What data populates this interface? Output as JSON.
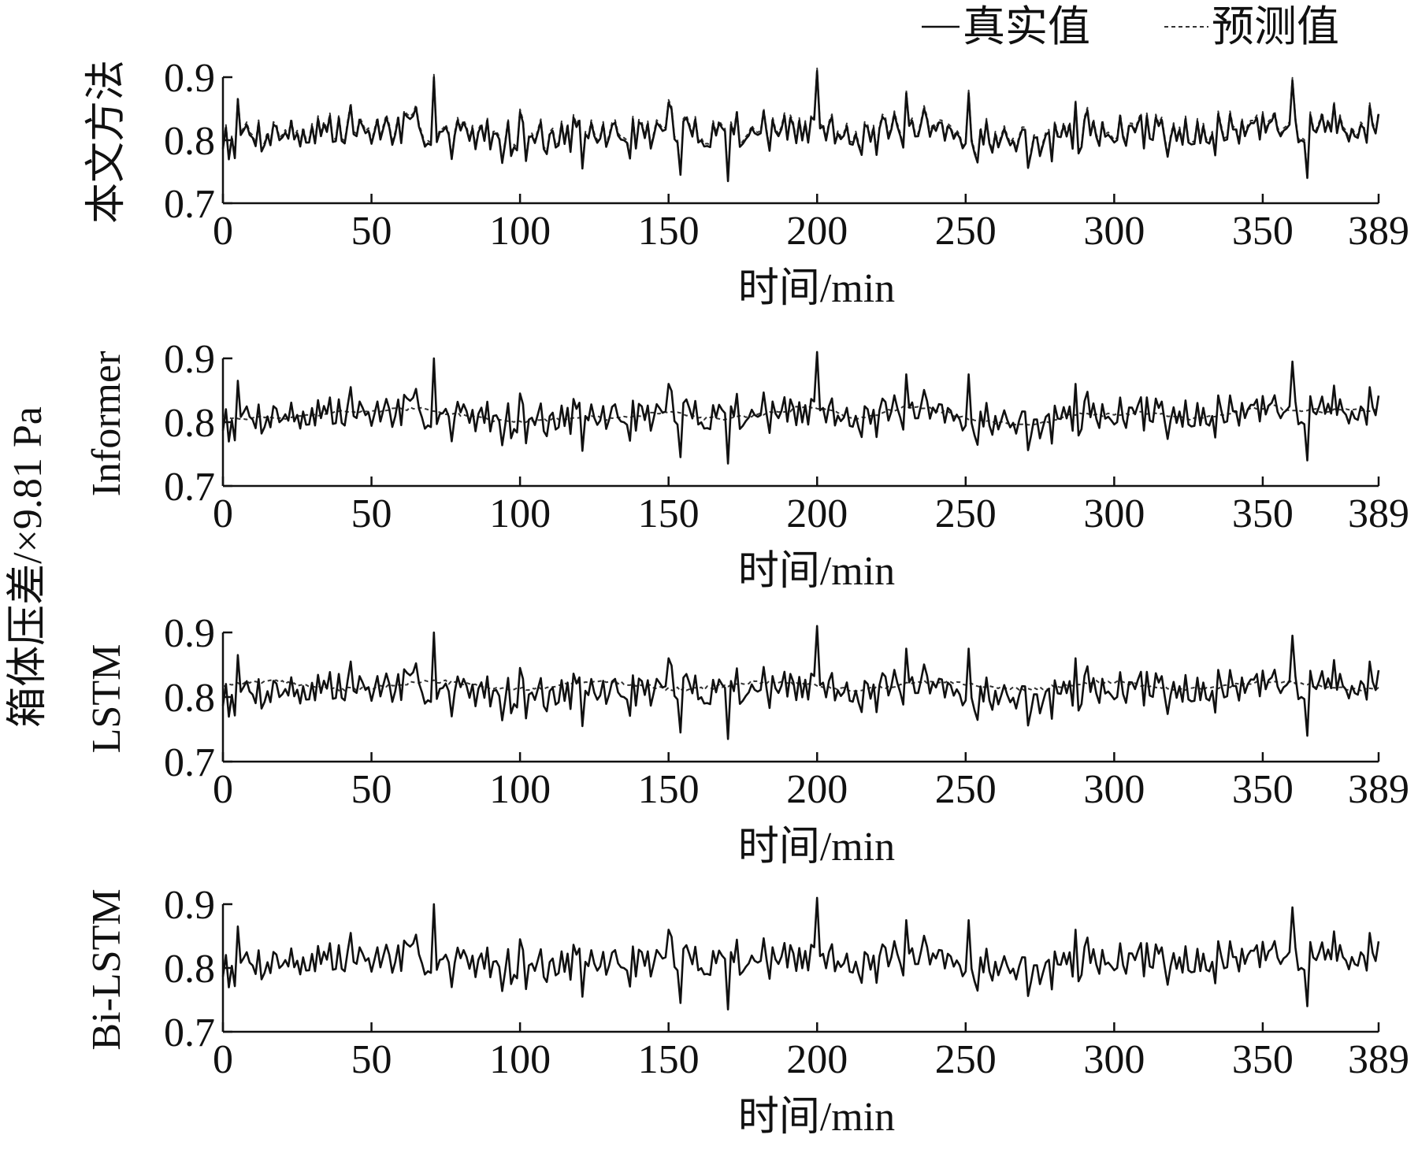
{
  "legend": {
    "items": [
      {
        "name": "真实值",
        "style": "solid",
        "color": "#111111"
      },
      {
        "name": "预测值",
        "style": "dashed",
        "color": "#333333"
      }
    ],
    "position": "top-right"
  },
  "common_ylabel": "箱体压差/×9.81 Pa",
  "chart_data": [
    {
      "type": "line",
      "ylabel": "本文方法",
      "xlabel": "时间/min",
      "xlim": [
        0,
        389
      ],
      "ylim": [
        0.7,
        0.9
      ],
      "xticks": [
        0,
        50,
        100,
        150,
        200,
        250,
        300,
        350,
        389
      ],
      "yticks": [
        0.7,
        0.8,
        0.9
      ],
      "grid": false,
      "series": [
        {
          "name": "真实值",
          "seed": 7,
          "base": [
            [
              0,
              0.81
            ],
            [
              60,
              0.815
            ],
            [
              110,
              0.805
            ],
            [
              150,
              0.812
            ],
            [
              200,
              0.815
            ],
            [
              240,
              0.81
            ],
            [
              270,
              0.795
            ],
            [
              300,
              0.815
            ],
            [
              389,
              0.82
            ]
          ],
          "spikes": [
            [
              5,
              0.865
            ],
            [
              43,
              0.855
            ],
            [
              71,
              0.9
            ],
            [
              77,
              0.77
            ],
            [
              100,
              0.845
            ],
            [
              121,
              0.755
            ],
            [
              150,
              0.86
            ],
            [
              154,
              0.745
            ],
            [
              170,
              0.735
            ],
            [
              200,
              0.91
            ],
            [
              230,
              0.875
            ],
            [
              251,
              0.875
            ],
            [
              287,
              0.86
            ],
            [
              360,
              0.895
            ],
            [
              365,
              0.74
            ],
            [
              386,
              0.855
            ]
          ]
        },
        {
          "name": "预测值",
          "mode": "follow",
          "smooth": 0,
          "offset": 0.004
        }
      ]
    },
    {
      "type": "line",
      "ylabel": "Informer",
      "xlabel": "时间/min",
      "xlim": [
        0,
        389
      ],
      "ylim": [
        0.7,
        0.9
      ],
      "xticks": [
        0,
        50,
        100,
        150,
        200,
        250,
        300,
        350,
        389
      ],
      "yticks": [
        0.7,
        0.8,
        0.9
      ],
      "grid": false,
      "series": [
        {
          "name": "真实值",
          "seed": 7,
          "base": [
            [
              0,
              0.81
            ],
            [
              60,
              0.815
            ],
            [
              110,
              0.805
            ],
            [
              150,
              0.812
            ],
            [
              200,
              0.815
            ],
            [
              240,
              0.81
            ],
            [
              270,
              0.795
            ],
            [
              300,
              0.815
            ],
            [
              389,
              0.82
            ]
          ],
          "spikes": [
            [
              5,
              0.865
            ],
            [
              43,
              0.855
            ],
            [
              71,
              0.9
            ],
            [
              77,
              0.77
            ],
            [
              100,
              0.845
            ],
            [
              121,
              0.755
            ],
            [
              150,
              0.86
            ],
            [
              154,
              0.745
            ],
            [
              170,
              0.735
            ],
            [
              200,
              0.91
            ],
            [
              230,
              0.875
            ],
            [
              251,
              0.875
            ],
            [
              287,
              0.86
            ],
            [
              360,
              0.895
            ],
            [
              365,
              0.74
            ],
            [
              386,
              0.855
            ]
          ]
        },
        {
          "name": "预测值",
          "mode": "follow",
          "smooth": 8,
          "offset": 0.0
        }
      ]
    },
    {
      "type": "line",
      "ylabel": "LSTM",
      "xlabel": "时间/min",
      "xlim": [
        0,
        389
      ],
      "ylim": [
        0.7,
        0.9
      ],
      "xticks": [
        0,
        50,
        100,
        150,
        200,
        250,
        300,
        350,
        389
      ],
      "yticks": [
        0.7,
        0.8,
        0.9
      ],
      "grid": false,
      "series": [
        {
          "name": "真实值",
          "seed": 7,
          "base": [
            [
              0,
              0.81
            ],
            [
              60,
              0.815
            ],
            [
              110,
              0.805
            ],
            [
              150,
              0.812
            ],
            [
              200,
              0.815
            ],
            [
              240,
              0.81
            ],
            [
              270,
              0.795
            ],
            [
              300,
              0.815
            ],
            [
              389,
              0.82
            ]
          ],
          "spikes": [
            [
              5,
              0.865
            ],
            [
              43,
              0.855
            ],
            [
              71,
              0.9
            ],
            [
              77,
              0.77
            ],
            [
              100,
              0.845
            ],
            [
              121,
              0.755
            ],
            [
              150,
              0.86
            ],
            [
              154,
              0.745
            ],
            [
              170,
              0.735
            ],
            [
              200,
              0.91
            ],
            [
              230,
              0.875
            ],
            [
              251,
              0.875
            ],
            [
              287,
              0.86
            ],
            [
              360,
              0.895
            ],
            [
              365,
              0.74
            ],
            [
              386,
              0.855
            ]
          ]
        },
        {
          "name": "预测值",
          "mode": "flat",
          "level": 0.818,
          "wobble": 0.006
        }
      ]
    },
    {
      "type": "line",
      "ylabel": "Bi-LSTM",
      "xlabel": "时间/min",
      "xlim": [
        0,
        389
      ],
      "ylim": [
        0.7,
        0.9
      ],
      "xticks": [
        0,
        50,
        100,
        150,
        200,
        250,
        300,
        350,
        389
      ],
      "yticks": [
        0.7,
        0.8,
        0.9
      ],
      "grid": false,
      "series": [
        {
          "name": "真实值",
          "seed": 7,
          "base": [
            [
              0,
              0.81
            ],
            [
              60,
              0.815
            ],
            [
              110,
              0.805
            ],
            [
              150,
              0.812
            ],
            [
              200,
              0.815
            ],
            [
              240,
              0.81
            ],
            [
              270,
              0.795
            ],
            [
              300,
              0.815
            ],
            [
              389,
              0.82
            ]
          ],
          "spikes": [
            [
              5,
              0.865
            ],
            [
              43,
              0.855
            ],
            [
              71,
              0.9
            ],
            [
              77,
              0.77
            ],
            [
              100,
              0.845
            ],
            [
              121,
              0.755
            ],
            [
              150,
              0.86
            ],
            [
              154,
              0.745
            ],
            [
              170,
              0.735
            ],
            [
              200,
              0.91
            ],
            [
              230,
              0.875
            ],
            [
              251,
              0.875
            ],
            [
              287,
              0.86
            ],
            [
              360,
              0.895
            ],
            [
              365,
              0.74
            ],
            [
              386,
              0.855
            ]
          ]
        },
        {
          "name": "预测值",
          "mode": "follow",
          "smooth": 0,
          "offset": 0.0
        }
      ]
    }
  ]
}
